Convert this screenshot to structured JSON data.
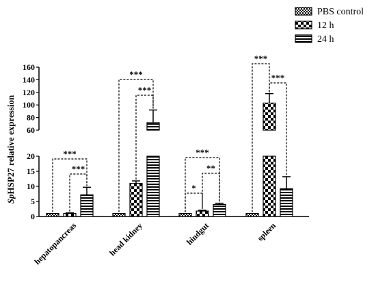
{
  "chart_data": {
    "type": "bar",
    "ylabel_italic": "Sp",
    "ylabel_rest": "HSP27 relative expression",
    "categories": [
      "hepatopancreas",
      "head kidney",
      "hindgut",
      "spleen"
    ],
    "series": [
      {
        "name": "PBS control",
        "pattern": "checker-fine",
        "values": [
          1,
          1,
          1,
          1
        ],
        "errors": [
          0,
          0,
          0,
          0
        ]
      },
      {
        "name": "12 h",
        "pattern": "checker-coarse",
        "values": [
          1,
          11,
          1.8,
          103
        ],
        "errors": [
          0.2,
          0.8,
          0.3,
          15
        ]
      },
      {
        "name": "24 h",
        "pattern": "horizontal-lines",
        "values": [
          7.2,
          72,
          4,
          9.2
        ],
        "errors": [
          2.5,
          20,
          0.4,
          4
        ]
      }
    ],
    "y_axis_break": {
      "lower_range": [
        0,
        20
      ],
      "upper_range": [
        60,
        160
      ]
    },
    "lower_ticks": [
      0,
      5,
      10,
      15,
      20
    ],
    "upper_ticks": [
      60,
      80,
      100,
      120,
      140,
      160
    ],
    "legend_position": "top-right",
    "significance": [
      {
        "category": 0,
        "from_series": 0,
        "to_series": 2,
        "label": "***"
      },
      {
        "category": 0,
        "from_series": 1,
        "to_series": 2,
        "label": "***"
      },
      {
        "category": 1,
        "from_series": 0,
        "to_series": 2,
        "label": "***"
      },
      {
        "category": 1,
        "from_series": 1,
        "to_series": 2,
        "label": "***"
      },
      {
        "category": 2,
        "from_series": 0,
        "to_series": 1,
        "label": "*"
      },
      {
        "category": 2,
        "from_series": 0,
        "to_series": 2,
        "label": "***"
      },
      {
        "category": 2,
        "from_series": 1,
        "to_series": 2,
        "label": "**"
      },
      {
        "category": 3,
        "from_series": 0,
        "to_series": 1,
        "label": "***"
      },
      {
        "category": 3,
        "from_series": 1,
        "to_series": 2,
        "label": "***"
      }
    ]
  }
}
